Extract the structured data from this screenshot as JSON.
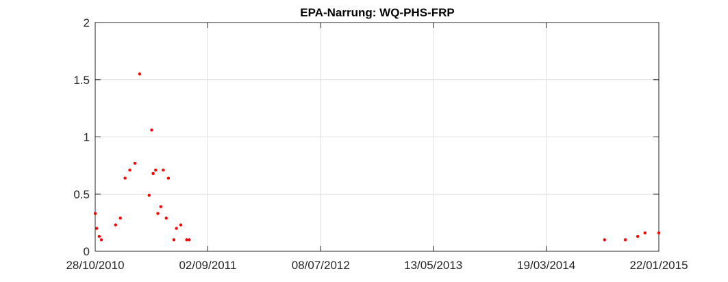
{
  "chart_data": {
    "type": "scatter",
    "title": "EPA-Narrung: WQ-PHS-FRP",
    "xlabel": "",
    "ylabel": "",
    "xlim": [
      "2010-10-28",
      "2015-01-22"
    ],
    "ylim": [
      0,
      2
    ],
    "x_ticks": [
      "2010-10-28",
      "2011-09-02",
      "2012-07-08",
      "2013-05-13",
      "2014-03-19",
      "2015-01-22"
    ],
    "x_tick_labels": [
      "28/10/2010",
      "02/09/2011",
      "08/07/2012",
      "13/05/2013",
      "19/03/2014",
      "22/01/2015"
    ],
    "y_ticks": [
      0,
      0.5,
      1,
      1.5,
      2
    ],
    "y_tick_labels": [
      "0",
      "0.5",
      "1",
      "1.5",
      "2"
    ],
    "grid": true,
    "marker_color": "#ff0000",
    "series": [
      {
        "points": [
          {
            "x": "2010-10-28",
            "y": 0.33
          },
          {
            "x": "2010-11-01",
            "y": 0.2
          },
          {
            "x": "2010-11-08",
            "y": 0.13
          },
          {
            "x": "2010-11-14",
            "y": 0.1
          },
          {
            "x": "2010-12-23",
            "y": 0.23
          },
          {
            "x": "2011-01-05",
            "y": 0.29
          },
          {
            "x": "2011-01-18",
            "y": 0.64
          },
          {
            "x": "2011-01-31",
            "y": 0.71
          },
          {
            "x": "2011-02-14",
            "y": 0.77
          },
          {
            "x": "2011-02-27",
            "y": 1.55
          },
          {
            "x": "2011-03-25",
            "y": 0.49
          },
          {
            "x": "2011-04-01",
            "y": 1.06
          },
          {
            "x": "2011-04-05",
            "y": 0.68
          },
          {
            "x": "2011-04-12",
            "y": 0.71
          },
          {
            "x": "2011-04-18",
            "y": 0.33
          },
          {
            "x": "2011-04-26",
            "y": 0.39
          },
          {
            "x": "2011-05-03",
            "y": 0.71
          },
          {
            "x": "2011-05-11",
            "y": 0.29
          },
          {
            "x": "2011-05-17",
            "y": 0.64
          },
          {
            "x": "2011-06-01",
            "y": 0.1
          },
          {
            "x": "2011-06-08",
            "y": 0.2
          },
          {
            "x": "2011-06-20",
            "y": 0.23
          },
          {
            "x": "2011-07-06",
            "y": 0.1
          },
          {
            "x": "2011-07-13",
            "y": 0.1
          },
          {
            "x": "2014-08-26",
            "y": 0.1
          },
          {
            "x": "2014-10-22",
            "y": 0.1
          },
          {
            "x": "2014-11-25",
            "y": 0.13
          },
          {
            "x": "2014-12-15",
            "y": 0.16
          },
          {
            "x": "2015-01-22",
            "y": 0.16
          }
        ]
      }
    ]
  }
}
